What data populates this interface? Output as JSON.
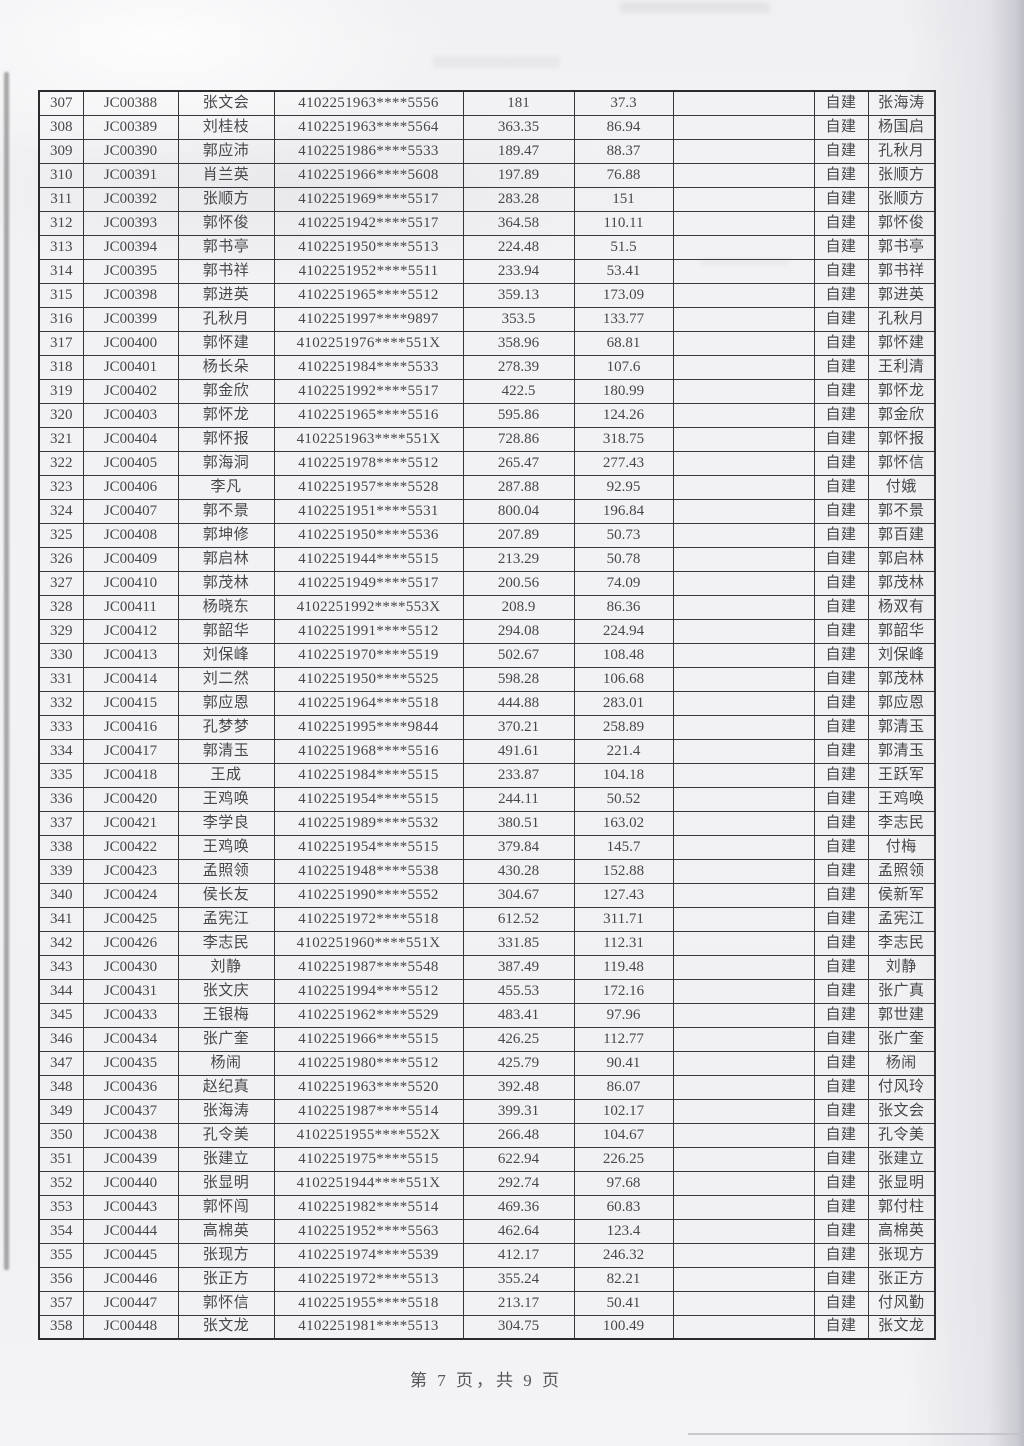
{
  "footer": {
    "page_info": "第 7 页，共 9 页"
  },
  "table": {
    "columns": [
      "index",
      "code",
      "name",
      "id_number",
      "amount1",
      "amount2",
      "blank",
      "build_type",
      "related_name"
    ],
    "rows": [
      [
        "307",
        "JC00388",
        "张文会",
        "4102251963****5556",
        "181",
        "37.3",
        "",
        "自建",
        "张海涛"
      ],
      [
        "308",
        "JC00389",
        "刘桂枝",
        "4102251963****5564",
        "363.35",
        "86.94",
        "",
        "自建",
        "杨国启"
      ],
      [
        "309",
        "JC00390",
        "郭应沛",
        "4102251986****5533",
        "189.47",
        "88.37",
        "",
        "自建",
        "孔秋月"
      ],
      [
        "310",
        "JC00391",
        "肖兰英",
        "4102251966****5608",
        "197.89",
        "76.88",
        "",
        "自建",
        "张顺方"
      ],
      [
        "311",
        "JC00392",
        "张顺方",
        "4102251969****5517",
        "283.28",
        "151",
        "",
        "自建",
        "张顺方"
      ],
      [
        "312",
        "JC00393",
        "郭怀俊",
        "4102251942****5517",
        "364.58",
        "110.11",
        "",
        "自建",
        "郭怀俊"
      ],
      [
        "313",
        "JC00394",
        "郭书亭",
        "4102251950****5513",
        "224.48",
        "51.5",
        "",
        "自建",
        "郭书亭"
      ],
      [
        "314",
        "JC00395",
        "郭书祥",
        "4102251952****5511",
        "233.94",
        "53.41",
        "",
        "自建",
        "郭书祥"
      ],
      [
        "315",
        "JC00398",
        "郭进英",
        "4102251965****5512",
        "359.13",
        "173.09",
        "",
        "自建",
        "郭进英"
      ],
      [
        "316",
        "JC00399",
        "孔秋月",
        "4102251997****9897",
        "353.5",
        "133.77",
        "",
        "自建",
        "孔秋月"
      ],
      [
        "317",
        "JC00400",
        "郭怀建",
        "4102251976****551X",
        "358.96",
        "68.81",
        "",
        "自建",
        "郭怀建"
      ],
      [
        "318",
        "JC00401",
        "杨长朵",
        "4102251984****5533",
        "278.39",
        "107.6",
        "",
        "自建",
        "王利清"
      ],
      [
        "319",
        "JC00402",
        "郭金欣",
        "4102251992****5517",
        "422.5",
        "180.99",
        "",
        "自建",
        "郭怀龙"
      ],
      [
        "320",
        "JC00403",
        "郭怀龙",
        "4102251965****5516",
        "595.86",
        "124.26",
        "",
        "自建",
        "郭金欣"
      ],
      [
        "321",
        "JC00404",
        "郭怀报",
        "4102251963****551X",
        "728.86",
        "318.75",
        "",
        "自建",
        "郭怀报"
      ],
      [
        "322",
        "JC00405",
        "郭海洞",
        "4102251978****5512",
        "265.47",
        "277.43",
        "",
        "自建",
        "郭怀信"
      ],
      [
        "323",
        "JC00406",
        "李凡",
        "4102251957****5528",
        "287.88",
        "92.95",
        "",
        "自建",
        "付娥"
      ],
      [
        "324",
        "JC00407",
        "郭不景",
        "4102251951****5531",
        "800.04",
        "196.84",
        "",
        "自建",
        "郭不景"
      ],
      [
        "325",
        "JC00408",
        "郭坤修",
        "4102251950****5536",
        "207.89",
        "50.73",
        "",
        "自建",
        "郭百建"
      ],
      [
        "326",
        "JC00409",
        "郭启林",
        "4102251944****5515",
        "213.29",
        "50.78",
        "",
        "自建",
        "郭启林"
      ],
      [
        "327",
        "JC00410",
        "郭茂林",
        "4102251949****5517",
        "200.56",
        "74.09",
        "",
        "自建",
        "郭茂林"
      ],
      [
        "328",
        "JC00411",
        "杨晓东",
        "4102251992****553X",
        "208.9",
        "86.36",
        "",
        "自建",
        "杨双有"
      ],
      [
        "329",
        "JC00412",
        "郭韶华",
        "4102251991****5512",
        "294.08",
        "224.94",
        "",
        "自建",
        "郭韶华"
      ],
      [
        "330",
        "JC00413",
        "刘保峰",
        "4102251970****5519",
        "502.67",
        "108.48",
        "",
        "自建",
        "刘保峰"
      ],
      [
        "331",
        "JC00414",
        "刘二然",
        "4102251950****5525",
        "598.28",
        "106.68",
        "",
        "自建",
        "郭茂林"
      ],
      [
        "332",
        "JC00415",
        "郭应恩",
        "4102251964****5518",
        "444.88",
        "283.01",
        "",
        "自建",
        "郭应恩"
      ],
      [
        "333",
        "JC00416",
        "孔梦梦",
        "4102251995****9844",
        "370.21",
        "258.89",
        "",
        "自建",
        "郭清玉"
      ],
      [
        "334",
        "JC00417",
        "郭清玉",
        "4102251968****5516",
        "491.61",
        "221.4",
        "",
        "自建",
        "郭清玉"
      ],
      [
        "335",
        "JC00418",
        "王成",
        "4102251984****5515",
        "233.87",
        "104.18",
        "",
        "自建",
        "王跃军"
      ],
      [
        "336",
        "JC00420",
        "王鸡唤",
        "4102251954****5515",
        "244.11",
        "50.52",
        "",
        "自建",
        "王鸡唤"
      ],
      [
        "337",
        "JC00421",
        "李学良",
        "4102251989****5532",
        "380.51",
        "163.02",
        "",
        "自建",
        "李志民"
      ],
      [
        "338",
        "JC00422",
        "王鸡唤",
        "4102251954****5515",
        "379.84",
        "145.7",
        "",
        "自建",
        "付梅"
      ],
      [
        "339",
        "JC00423",
        "孟照领",
        "4102251948****5538",
        "430.28",
        "152.88",
        "",
        "自建",
        "孟照领"
      ],
      [
        "340",
        "JC00424",
        "侯长友",
        "4102251990****5552",
        "304.67",
        "127.43",
        "",
        "自建",
        "侯新军"
      ],
      [
        "341",
        "JC00425",
        "孟宪江",
        "4102251972****5518",
        "612.52",
        "311.71",
        "",
        "自建",
        "孟宪江"
      ],
      [
        "342",
        "JC00426",
        "李志民",
        "4102251960****551X",
        "331.85",
        "112.31",
        "",
        "自建",
        "李志民"
      ],
      [
        "343",
        "JC00430",
        "刘静",
        "4102251987****5548",
        "387.49",
        "119.48",
        "",
        "自建",
        "刘静"
      ],
      [
        "344",
        "JC00431",
        "张文庆",
        "4102251994****5512",
        "455.53",
        "172.16",
        "",
        "自建",
        "张广真"
      ],
      [
        "345",
        "JC00433",
        "王银梅",
        "4102251962****5529",
        "483.41",
        "97.96",
        "",
        "自建",
        "郭世建"
      ],
      [
        "346",
        "JC00434",
        "张广奎",
        "4102251966****5515",
        "426.25",
        "112.77",
        "",
        "自建",
        "张广奎"
      ],
      [
        "347",
        "JC00435",
        "杨闹",
        "4102251980****5512",
        "425.79",
        "90.41",
        "",
        "自建",
        "杨闹"
      ],
      [
        "348",
        "JC00436",
        "赵纪真",
        "4102251963****5520",
        "392.48",
        "86.07",
        "",
        "自建",
        "付风玲"
      ],
      [
        "349",
        "JC00437",
        "张海涛",
        "4102251987****5514",
        "399.31",
        "102.17",
        "",
        "自建",
        "张文会"
      ],
      [
        "350",
        "JC00438",
        "孔令美",
        "4102251955****552X",
        "266.48",
        "104.67",
        "",
        "自建",
        "孔令美"
      ],
      [
        "351",
        "JC00439",
        "张建立",
        "4102251975****5515",
        "622.94",
        "226.25",
        "",
        "自建",
        "张建立"
      ],
      [
        "352",
        "JC00440",
        "张显明",
        "4102251944****551X",
        "292.74",
        "97.68",
        "",
        "自建",
        "张显明"
      ],
      [
        "353",
        "JC00443",
        "郭怀闯",
        "4102251982****5514",
        "469.36",
        "60.83",
        "",
        "自建",
        "郭付柱"
      ],
      [
        "354",
        "JC00444",
        "高棉英",
        "4102251952****5563",
        "462.64",
        "123.4",
        "",
        "自建",
        "高棉英"
      ],
      [
        "355",
        "JC00445",
        "张现方",
        "4102251974****5539",
        "412.17",
        "246.32",
        "",
        "自建",
        "张现方"
      ],
      [
        "356",
        "JC00446",
        "张正方",
        "4102251972****5513",
        "355.24",
        "82.21",
        "",
        "自建",
        "张正方"
      ],
      [
        "357",
        "JC00447",
        "郭怀信",
        "4102251955****5518",
        "213.17",
        "50.41",
        "",
        "自建",
        "付风勤"
      ],
      [
        "358",
        "JC00448",
        "张文龙",
        "4102251981****5513",
        "304.75",
        "100.49",
        "",
        "自建",
        "张文龙"
      ]
    ]
  }
}
